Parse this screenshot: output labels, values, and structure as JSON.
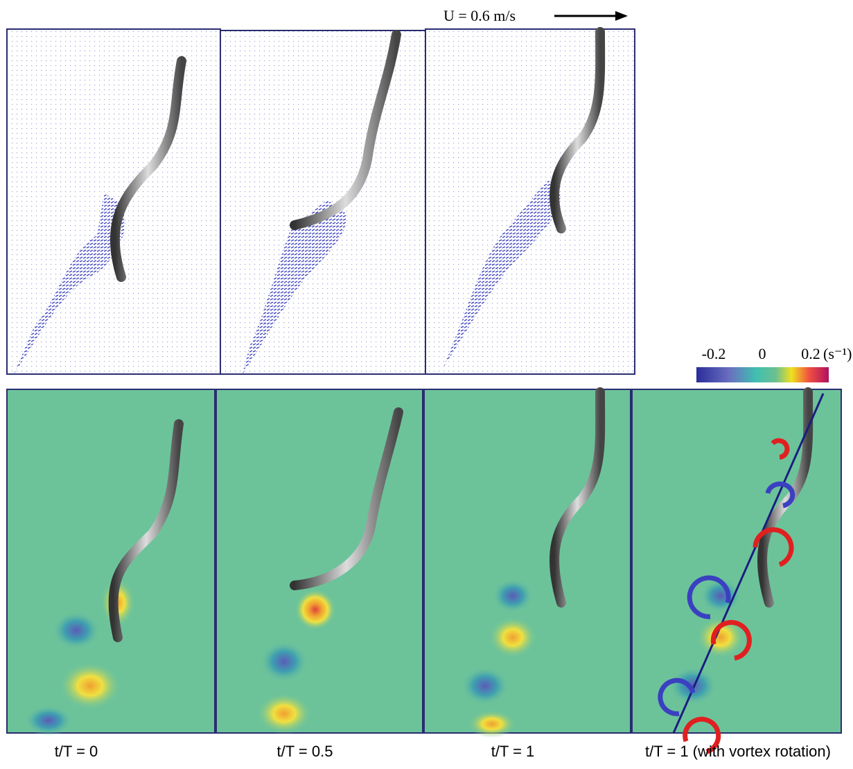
{
  "figure": {
    "velocity_reference": "U = 0.6 m/s",
    "colorbar": {
      "labels": [
        "-0.2",
        "0",
        "0.2"
      ],
      "unit": "(s⁻¹)"
    },
    "captions": [
      "t/T = 0",
      "t/T = 0.5",
      "t/T = 1",
      "t/T = 1 (with vortex rotation)"
    ]
  }
}
